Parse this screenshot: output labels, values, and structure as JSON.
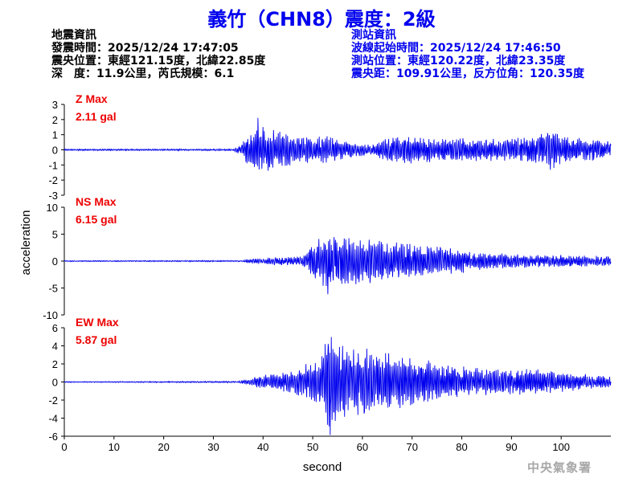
{
  "title": "義竹（CHN8）震度：2級",
  "quake_info": {
    "heading": "地震資訊",
    "time": "發震時間：2025/12/24 17:47:05",
    "location": "震央位置：東經121.15度，北緯22.85度",
    "depth_mag": "深　度：11.9公里，芮氏規模：6.1"
  },
  "station_info": {
    "heading": "測站資訊",
    "wave_start": "波線起始時間：2025/12/24 17:46:50",
    "location": "測站位置：東經120.22度，北緯23.35度",
    "distance": "震央距：109.91公里，反方位角：120.35度"
  },
  "agency": "中央氣象署",
  "chart_data": {
    "type": "line",
    "xlabel": "second",
    "ylabel": "acceleration",
    "xlim": [
      0,
      110
    ],
    "xticks": [
      0,
      10,
      20,
      30,
      40,
      50,
      60,
      70,
      80,
      90,
      100
    ],
    "line_color": "#0000ee",
    "label_color": "#ee0000",
    "panels": [
      {
        "component": "Z",
        "label": "Z Max",
        "max_text": "2.11 gal",
        "max": 2.11,
        "ylim": [
          -3,
          3
        ],
        "yticks": [
          -3,
          -2,
          -1,
          0,
          1,
          2,
          3
        ],
        "envelope": [
          [
            0,
            0.05
          ],
          [
            34,
            0.06
          ],
          [
            35.5,
            0.3
          ],
          [
            37,
            1.0
          ],
          [
            39,
            1.6
          ],
          [
            42,
            1.3
          ],
          [
            45,
            1.0
          ],
          [
            50,
            0.8
          ],
          [
            53,
            0.9
          ],
          [
            56,
            0.6
          ],
          [
            60,
            0.4
          ],
          [
            62,
            0.3
          ],
          [
            64,
            0.75
          ],
          [
            70,
            0.9
          ],
          [
            76,
            0.7
          ],
          [
            80,
            0.75
          ],
          [
            86,
            0.75
          ],
          [
            90,
            0.8
          ],
          [
            95,
            0.85
          ],
          [
            98,
            1.4
          ],
          [
            100,
            0.9
          ],
          [
            106,
            0.7
          ],
          [
            110,
            0.6
          ]
        ]
      },
      {
        "component": "NS",
        "label": "NS Max",
        "max_text": "6.15 gal",
        "max": 6.15,
        "ylim": [
          -10,
          10
        ],
        "yticks": [
          -10,
          -5,
          0,
          5,
          10
        ],
        "envelope": [
          [
            0,
            0.1
          ],
          [
            36,
            0.12
          ],
          [
            38,
            0.5
          ],
          [
            42,
            0.7
          ],
          [
            48,
            1.0
          ],
          [
            50,
            2.8
          ],
          [
            53,
            5.5
          ],
          [
            55,
            4.2
          ],
          [
            59,
            4.5
          ],
          [
            63,
            3.8
          ],
          [
            68,
            3.5
          ],
          [
            72,
            2.8
          ],
          [
            76,
            2.6
          ],
          [
            80,
            2.2
          ],
          [
            85,
            1.6
          ],
          [
            90,
            1.3
          ],
          [
            96,
            1.1
          ],
          [
            100,
            1.1
          ],
          [
            110,
            0.9
          ]
        ]
      },
      {
        "component": "EW",
        "label": "EW Max",
        "max_text": "5.87 gal",
        "max": 5.87,
        "ylim": [
          -6,
          6
        ],
        "yticks": [
          -6,
          -4,
          -2,
          0,
          2,
          4,
          6
        ],
        "envelope": [
          [
            0,
            0.05
          ],
          [
            35,
            0.08
          ],
          [
            37,
            0.35
          ],
          [
            40,
            0.8
          ],
          [
            43,
            0.9
          ],
          [
            46,
            1.3
          ],
          [
            50,
            2.3
          ],
          [
            52,
            3.2
          ],
          [
            53.5,
            5.8
          ],
          [
            55,
            4.3
          ],
          [
            58,
            3.8
          ],
          [
            62,
            3.5
          ],
          [
            66,
            3.2
          ],
          [
            70,
            2.6
          ],
          [
            74,
            2.2
          ],
          [
            78,
            2.0
          ],
          [
            82,
            1.6
          ],
          [
            88,
            1.3
          ],
          [
            94,
            1.5
          ],
          [
            100,
            1.1
          ],
          [
            110,
            0.6
          ]
        ]
      }
    ]
  }
}
